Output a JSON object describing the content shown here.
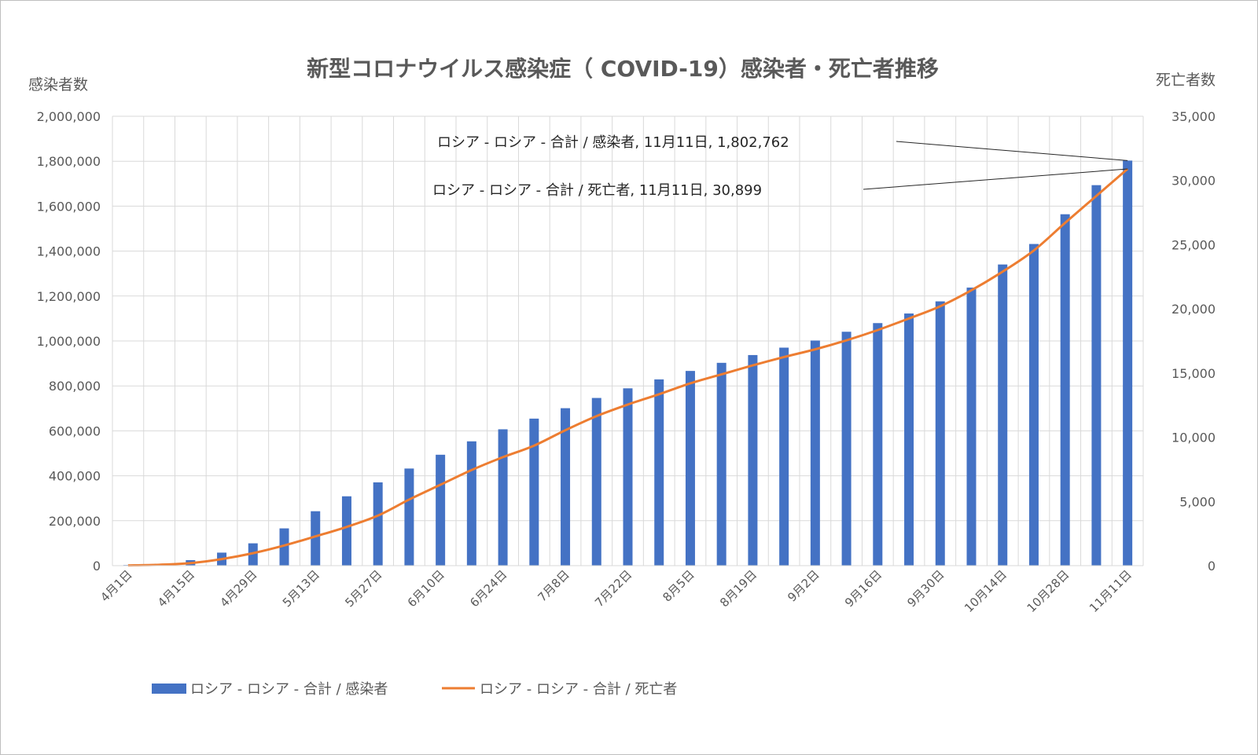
{
  "chart_data": {
    "type": "bar+line",
    "title": "新型コロナウイルス感染症（ COVID-19）感染者・死亡者推移",
    "y_left_label": "感染者数",
    "y_right_label": "死亡者数",
    "y_left_lim": [
      0,
      2000000
    ],
    "y_right_lim": [
      0,
      35000
    ],
    "y_left_ticks": [
      "0",
      "200,000",
      "400,000",
      "600,000",
      "800,000",
      "1,000,000",
      "1,200,000",
      "1,400,000",
      "1,600,000",
      "1,800,000",
      "2,000,000"
    ],
    "y_right_ticks": [
      "0",
      "5,000",
      "10,000",
      "15,000",
      "20,000",
      "25,000",
      "30,000",
      "35,000"
    ],
    "categories": [
      "4月1日",
      "4月8日",
      "4月15日",
      "4月22日",
      "4月29日",
      "5月6日",
      "5月13日",
      "5月20日",
      "5月27日",
      "6月3日",
      "6月10日",
      "6月17日",
      "6月24日",
      "7月1日",
      "7月8日",
      "7月15日",
      "7月22日",
      "7月29日",
      "8月5日",
      "8月12日",
      "8月19日",
      "8月26日",
      "9月2日",
      "9月9日",
      "9月16日",
      "9月23日",
      "9月30日",
      "10月7日",
      "10月14日",
      "10月21日",
      "10月28日",
      "11月4日",
      "11月11日"
    ],
    "x_tick_labels": [
      "4月1日",
      "4月15日",
      "4月29日",
      "5月13日",
      "5月27日",
      "6月10日",
      "6月24日",
      "7月8日",
      "7月22日",
      "8月5日",
      "8月19日",
      "9月2日",
      "9月16日",
      "9月30日",
      "10月14日",
      "10月28日",
      "11月11日"
    ],
    "series": [
      {
        "name": "ロシア - ロシア - 合計 / 感染者",
        "axis": "left",
        "type": "bar",
        "color": "#4472c4",
        "values": [
          2777,
          8672,
          24490,
          57999,
          99399,
          165929,
          242271,
          308705,
          370680,
          432277,
          493657,
          553301,
          606881,
          654405,
          700792,
          746369,
          789190,
          828990,
          866627,
          902701,
          937321,
          970296,
          1001965,
          1041007,
          1079519,
          1122241,
          1176286,
          1237504,
          1340409,
          1431635,
          1563976,
          1693454,
          1802762
        ]
      },
      {
        "name": "ロシア - ロシア - 合計 / 死亡者",
        "axis": "right",
        "type": "line",
        "color": "#ed7d31",
        "values": [
          24,
          72,
          198,
          513,
          972,
          1572,
          2280,
          3020,
          3900,
          5150,
          6300,
          7450,
          8450,
          9350,
          10550,
          11650,
          12550,
          13350,
          14200,
          14900,
          15600,
          16250,
          16850,
          17550,
          18350,
          19250,
          20200,
          21450,
          22900,
          24550,
          26700,
          28800,
          30899
        ]
      }
    ],
    "annotations": [
      {
        "text": "ロシア - ロシア - 合計 / 感染者, 11月11日, 1,802,762",
        "series": 0
      },
      {
        "text": "ロシア - ロシア - 合計 / 死亡者, 11月11日, 30,899",
        "series": 1
      }
    ],
    "legend": [
      "ロシア - ロシア - 合計 / 感染者",
      "ロシア - ロシア - 合計 / 死亡者"
    ],
    "legend_position": "bottom-left",
    "grid": true
  }
}
